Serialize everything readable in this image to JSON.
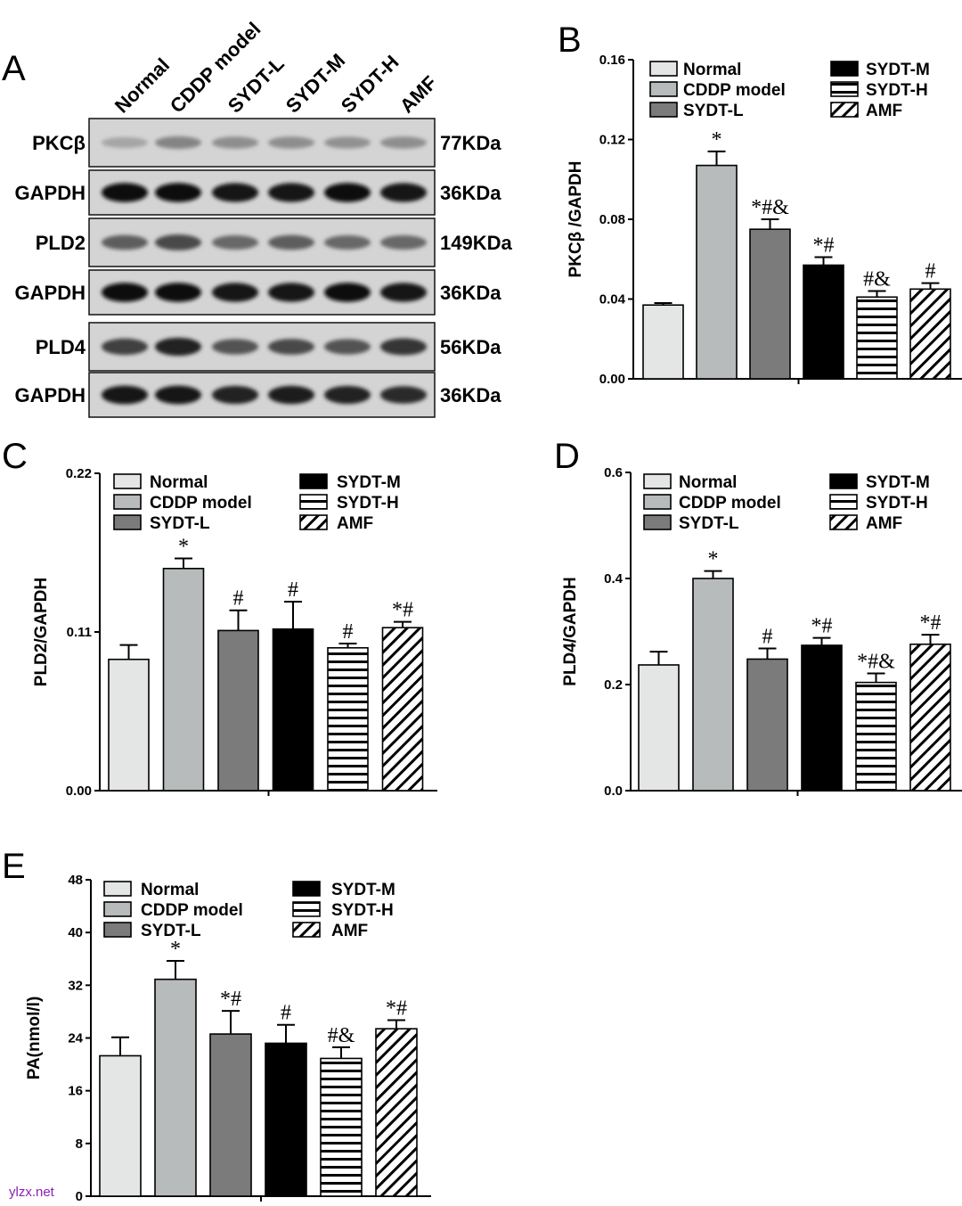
{
  "colors": {
    "Normal": "#e4e6e5",
    "CDDP model": "#b8bbbb",
    "SYDT-L": "#7b7b7b",
    "SYDT-M": "#000000",
    "SYDT-H": "#ffffff",
    "AMF": "#ffffff"
  },
  "fills": [
    "solid",
    "solid",
    "solid",
    "solid",
    "hstripe",
    "diag"
  ],
  "western_blot": {
    "letter": "A",
    "lanes": [
      "Normal",
      "CDDP model",
      "SYDT-L",
      "SYDT-M",
      "SYDT-H",
      "AMF"
    ],
    "rows": [
      {
        "protein": "PKCβ",
        "size": "77KDa",
        "intensity": [
          0.18,
          0.35,
          0.3,
          0.3,
          0.28,
          0.3
        ]
      },
      {
        "protein": "GAPDH",
        "size": "36KDa",
        "intensity": [
          0.95,
          0.95,
          0.93,
          0.93,
          0.95,
          0.93
        ]
      },
      {
        "protein": "PLD2",
        "size": "149KDa",
        "intensity": [
          0.55,
          0.65,
          0.5,
          0.55,
          0.5,
          0.5
        ]
      },
      {
        "protein": "GAPDH",
        "size": "36KDa",
        "intensity": [
          0.95,
          0.95,
          0.93,
          0.93,
          0.95,
          0.93
        ]
      },
      {
        "protein": "PLD4",
        "size": "56KDa",
        "intensity": [
          0.7,
          0.85,
          0.6,
          0.65,
          0.6,
          0.75
        ]
      },
      {
        "protein": "GAPDH",
        "size": "36KDa",
        "intensity": [
          0.9,
          0.9,
          0.85,
          0.88,
          0.85,
          0.8
        ]
      }
    ]
  },
  "chart_data": [
    {
      "letter": "B",
      "type": "bar",
      "categories": [
        "Normal",
        "CDDP model",
        "SYDT-L",
        "SYDT-M",
        "SYDT-H",
        "AMF"
      ],
      "values": [
        0.037,
        0.107,
        0.075,
        0.057,
        0.041,
        0.045
      ],
      "errors": [
        0.001,
        0.007,
        0.005,
        0.004,
        0.003,
        0.003
      ],
      "significance": [
        "",
        "*",
        "*#&",
        "*#",
        "#&",
        "#"
      ],
      "ylabel": "PKCβ /GAPDH",
      "ylim": [
        0,
        0.16
      ],
      "yticks": [
        "0.00",
        "0.04",
        "0.08",
        "0.12",
        "0.16"
      ],
      "legend": "top"
    },
    {
      "letter": "C",
      "type": "bar",
      "categories": [
        "Normal",
        "CDDP model",
        "SYDT-L",
        "SYDT-M",
        "SYDT-H",
        "AMF"
      ],
      "values": [
        0.091,
        0.154,
        0.111,
        0.112,
        0.099,
        0.113
      ],
      "errors": [
        0.01,
        0.007,
        0.014,
        0.019,
        0.003,
        0.004
      ],
      "significance": [
        "",
        "*",
        "#",
        "#",
        "#",
        "*#"
      ],
      "ylabel": "PLD2/GAPDH",
      "ylim": [
        0,
        0.22
      ],
      "yticks": [
        "0.00",
        "0.11",
        "0.22"
      ],
      "legend": "top"
    },
    {
      "letter": "D",
      "type": "bar",
      "categories": [
        "Normal",
        "CDDP model",
        "SYDT-L",
        "SYDT-M",
        "SYDT-H",
        "AMF"
      ],
      "values": [
        0.237,
        0.4,
        0.248,
        0.274,
        0.204,
        0.276
      ],
      "errors": [
        0.025,
        0.014,
        0.02,
        0.014,
        0.017,
        0.018
      ],
      "significance": [
        "",
        "*",
        "#",
        "*#",
        "*#&",
        "*#"
      ],
      "ylabel": "PLD4/GAPDH",
      "ylim": [
        0,
        0.6
      ],
      "yticks": [
        "0.0",
        "0.2",
        "0.4",
        "0.6"
      ],
      "legend": "top"
    },
    {
      "letter": "E",
      "type": "bar",
      "categories": [
        "Normal",
        "CDDP model",
        "SYDT-L",
        "SYDT-M",
        "SYDT-H",
        "AMF"
      ],
      "values": [
        21.3,
        32.9,
        24.6,
        23.2,
        20.9,
        25.4
      ],
      "errors": [
        2.8,
        2.8,
        3.5,
        2.8,
        1.7,
        1.3
      ],
      "significance": [
        "",
        "*",
        "*#",
        "#",
        "#&",
        "*#"
      ],
      "ylabel": "PA(nmol/l)",
      "ylim": [
        0,
        48
      ],
      "yticks": [
        "0",
        "8",
        "16",
        "24",
        "32",
        "40",
        "48"
      ],
      "legend": "top"
    }
  ],
  "watermark": "ylzx.net"
}
